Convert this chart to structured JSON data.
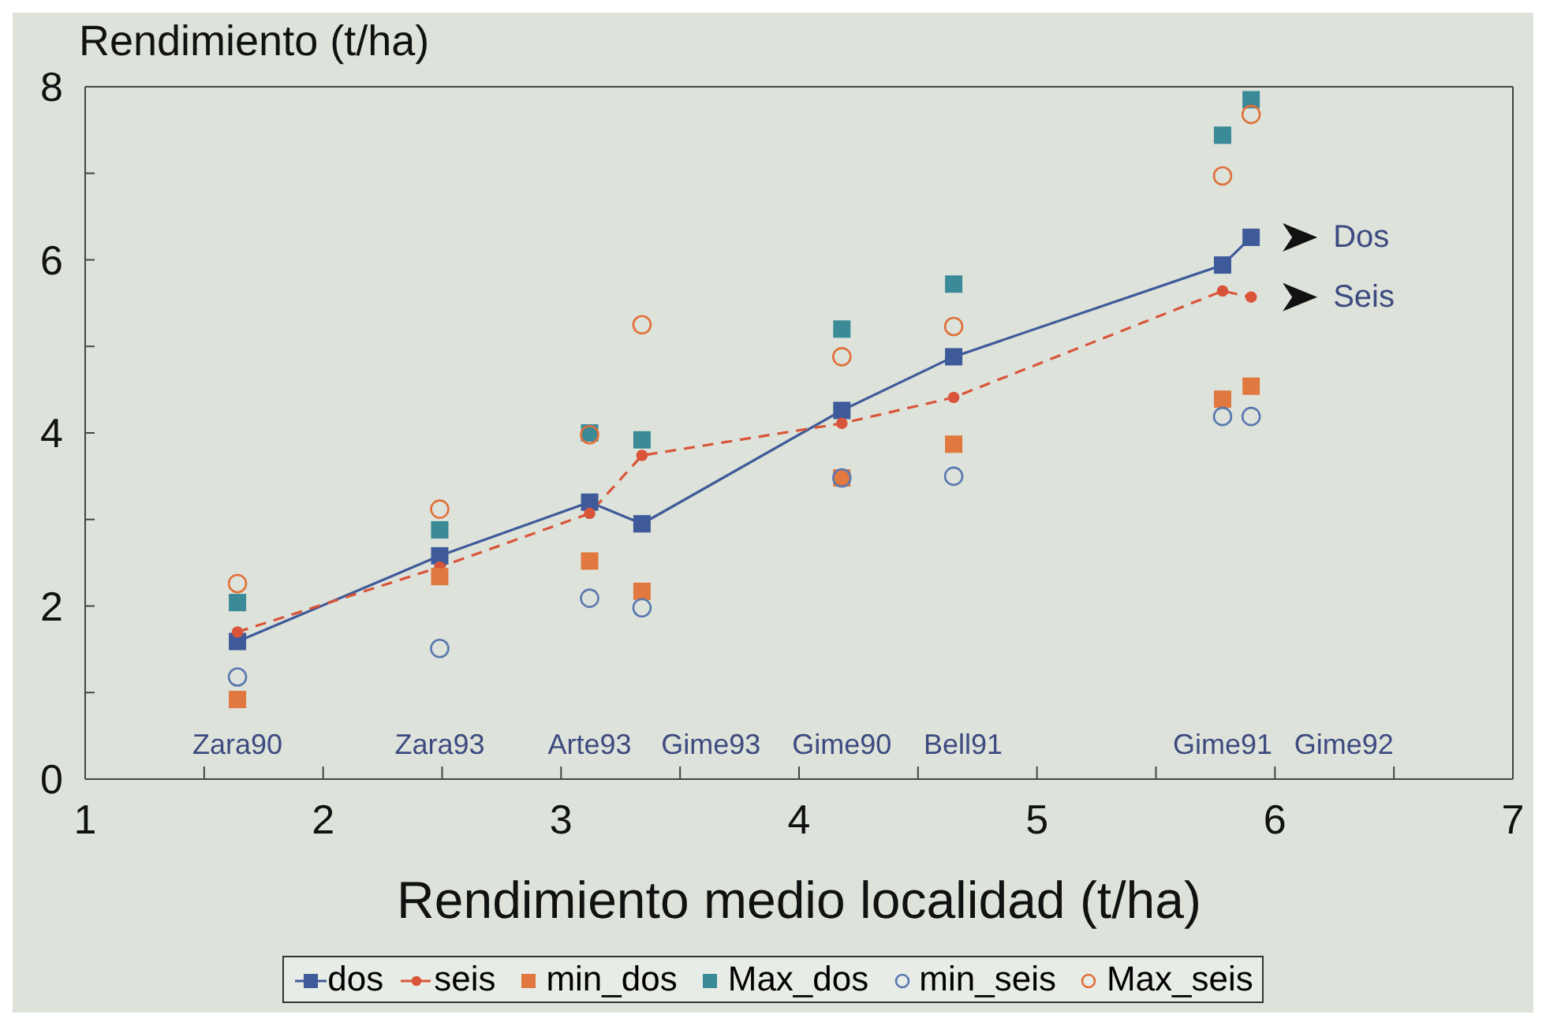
{
  "chart_data": {
    "type": "line",
    "ylabel": "Rendimiento (t/ha)",
    "xlabel": "Rendimiento medio  localidad (t/ha)",
    "x": [
      1.64,
      2.49,
      3.12,
      3.34,
      4.18,
      4.65,
      5.78,
      5.9
    ],
    "xlim": [
      1,
      7
    ],
    "xticks": [
      1,
      {
        "value": 1.5,
        "label": null
      },
      2,
      {
        "value": 2.5,
        "label": null
      },
      3,
      {
        "value": 3.5,
        "label": null
      },
      4,
      {
        "value": 4.5,
        "label": null
      },
      5,
      {
        "value": 5.5,
        "label": null
      },
      6,
      {
        "value": 6.5,
        "label": null
      },
      7
    ],
    "ylim": [
      0,
      8
    ],
    "yticks": [
      0,
      {
        "value": 1,
        "label": null
      },
      2,
      {
        "value": 3,
        "label": null
      },
      4,
      {
        "value": 5,
        "label": null
      },
      6,
      {
        "value": 7,
        "label": null
      },
      8
    ],
    "grid": false,
    "legend": "bottom",
    "series": [
      {
        "name": "dos",
        "color": "#3f5a9a",
        "marker": "square",
        "line_style": "solid",
        "values": [
          1.59,
          2.58,
          3.2,
          2.95,
          4.26,
          4.88,
          5.94,
          6.26
        ]
      },
      {
        "name": "seis",
        "color": "#d9553a",
        "marker": "circle",
        "line_style": "dashed",
        "values": [
          1.7,
          2.45,
          3.07,
          3.74,
          4.11,
          4.41,
          5.64,
          5.57
        ]
      },
      {
        "name": "min_dos",
        "type": "scatter",
        "color": "#e07840",
        "marker": "square",
        "values": [
          0.92,
          2.34,
          2.52,
          2.17,
          3.48,
          3.87,
          4.39,
          4.54
        ]
      },
      {
        "name": "Max_dos",
        "type": "scatter",
        "color": "#3a8a98",
        "marker": "square",
        "values": [
          2.04,
          2.88,
          4.0,
          3.92,
          5.2,
          5.72,
          7.44,
          7.85
        ]
      },
      {
        "name": "min_seis",
        "type": "scatter",
        "color": "#5a78b0",
        "marker": "circle",
        "values": [
          1.18,
          1.51,
          2.09,
          1.98,
          3.48,
          3.5,
          4.19,
          4.19
        ]
      },
      {
        "name": "Max_seis",
        "type": "scatter",
        "color": "#e0703a",
        "marker": "circle",
        "values": [
          2.26,
          3.12,
          3.98,
          5.25,
          4.88,
          5.23,
          6.97,
          7.68
        ]
      }
    ],
    "annotations": [
      "Zara90",
      "Zara93",
      "Arte93",
      "Gime93",
      "Gime90",
      "Bell91",
      "Gime91",
      "Gime92",
      {
        "text": "Dos",
        "x": 5.9,
        "y": 6.26
      },
      {
        "text": "Seis",
        "x": 5.9,
        "y": 5.57
      }
    ]
  }
}
